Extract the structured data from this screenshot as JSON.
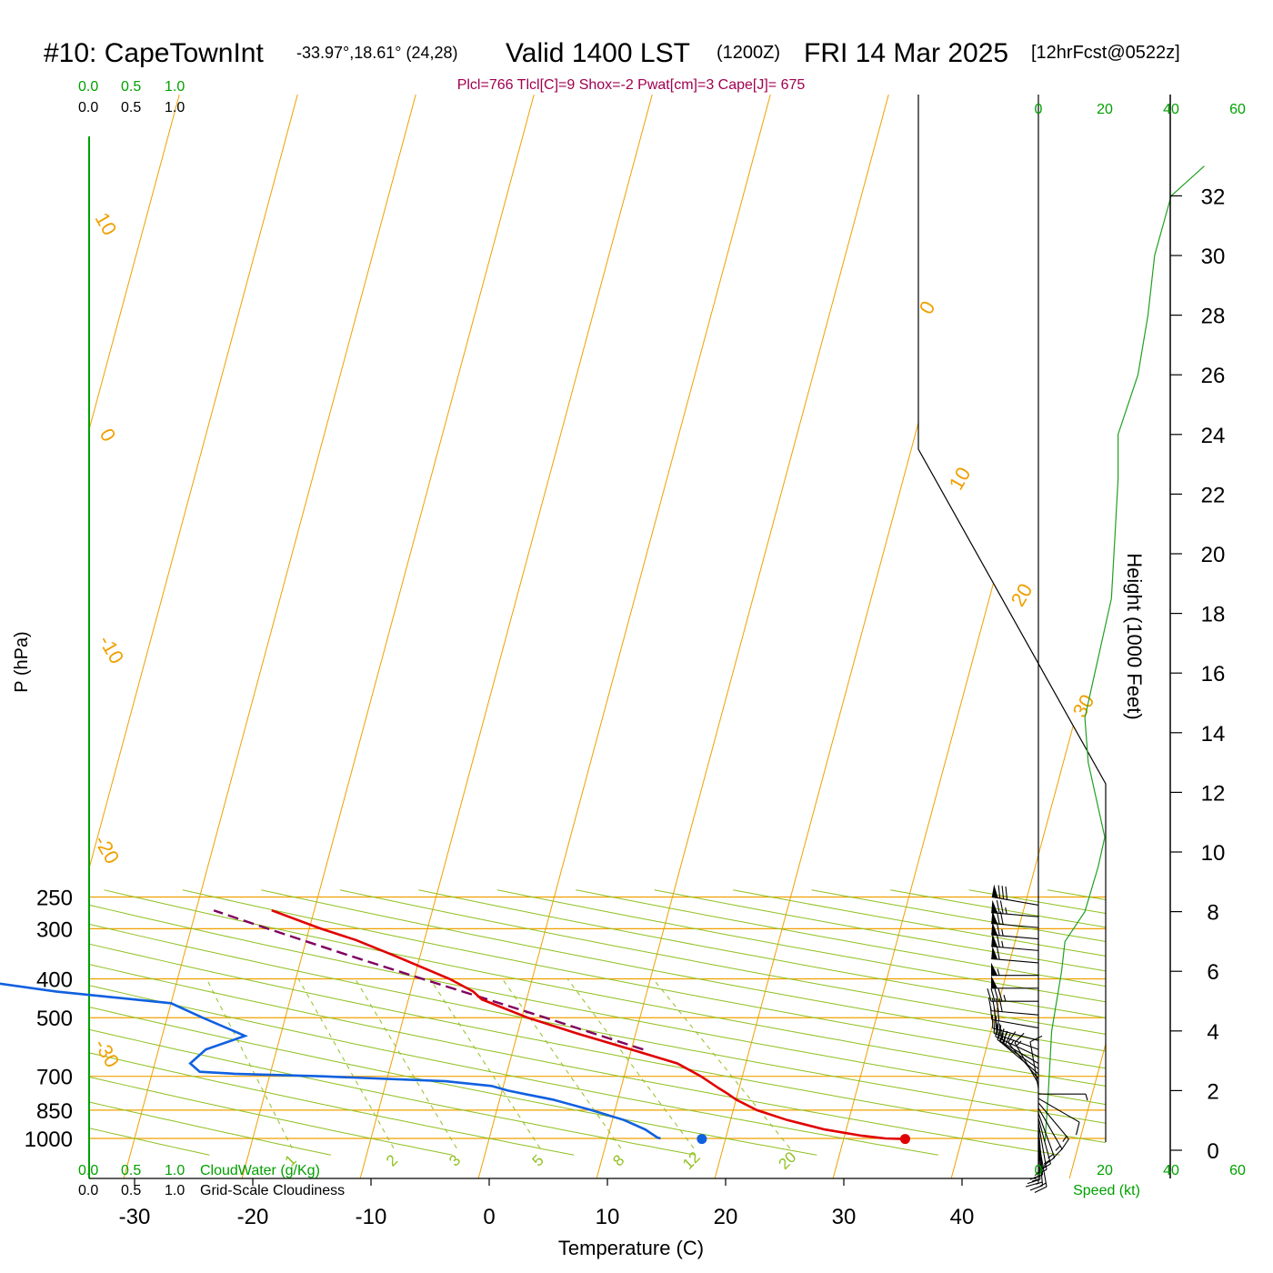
{
  "header": {
    "station": "#10: CapeTownInt",
    "coords": "-33.97°,18.61° (24,28)",
    "valid": "Valid 1400 LST",
    "zulu": "(1200Z)",
    "date": "FRI 14 Mar 2025",
    "forecast": "[12hrFcst@0522z]"
  },
  "indices": "Plcl=766 Tlcl[C]=9 Shox=-2 Pwat[cm]=3 Cape[J]= 675",
  "cloud_scale": {
    "ticks": [
      "0.0",
      "0.5",
      "1.0"
    ],
    "cloudwater_label": "CloudWater (g/Kg)",
    "cloudiness_label": "Grid-Scale Cloudiness"
  },
  "speed_scale": {
    "ticks": [
      "0",
      "20",
      "40",
      "60"
    ],
    "label": "Speed (kt)"
  },
  "colors": {
    "temperature": "#e00000",
    "dewpoint": "#1060e0",
    "parcel": "#800060",
    "isotherm": "#f0a000",
    "dry_adiabat": "#90c020",
    "mixing_ratio": "#90c020",
    "speed_profile": "#20a020",
    "label_green": "#00a000",
    "indices": "#a00050"
  },
  "chart_data": {
    "type": "skew-t",
    "xlabel": "Temperature (C)",
    "ylabel": "P (hPa)",
    "y2label": "Height (1000 Feet)",
    "x_ticks": [
      -30,
      -20,
      -10,
      0,
      10,
      20,
      30,
      40
    ],
    "p_ticks": [
      250,
      300,
      400,
      500,
      700,
      850,
      1000
    ],
    "height_ticks": [
      0,
      2,
      4,
      6,
      8,
      10,
      12,
      14,
      16,
      18,
      20,
      22,
      24,
      26,
      28,
      30,
      32
    ],
    "isotherm_labels": [
      {
        "text": "10",
        "t": 10
      },
      {
        "text": "0",
        "t": 0
      },
      {
        "text": "-10",
        "t": -10
      },
      {
        "text": "-20",
        "t": -20
      },
      {
        "text": "-30",
        "t": -30
      },
      {
        "text": "0",
        "t": 0
      },
      {
        "text": "10",
        "t": 10
      },
      {
        "text": "20",
        "t": 20
      },
      {
        "text": "30",
        "t": 30
      }
    ],
    "mixing_ratio_labels": [
      "1",
      "2",
      "3",
      "5",
      "8",
      "12",
      "20"
    ],
    "mixing_ratios": [
      1,
      2,
      3,
      5,
      8,
      12,
      20
    ],
    "temperature_profile": [
      {
        "p": 1003,
        "t": 35.0
      },
      {
        "p": 1000,
        "t": 33.5
      },
      {
        "p": 985,
        "t": 31.5
      },
      {
        "p": 950,
        "t": 28.2
      },
      {
        "p": 900,
        "t": 24.8
      },
      {
        "p": 850,
        "t": 22.0
      },
      {
        "p": 800,
        "t": 20.0
      },
      {
        "p": 775,
        "t": 19.2
      },
      {
        "p": 750,
        "t": 18.3
      },
      {
        "p": 700,
        "t": 16.5
      },
      {
        "p": 650,
        "t": 14.2
      },
      {
        "p": 600,
        "t": 10.0
      },
      {
        "p": 550,
        "t": 5.3
      },
      {
        "p": 500,
        "t": 0.5
      },
      {
        "p": 450,
        "t": -3.8
      },
      {
        "p": 430,
        "t": -4.7
      },
      {
        "p": 400,
        "t": -7.0
      },
      {
        "p": 350,
        "t": -12.2
      },
      {
        "p": 320,
        "t": -15.8
      },
      {
        "p": 300,
        "t": -19.0
      },
      {
        "p": 270,
        "t": -23.6
      }
    ],
    "dewpoint_profile": [
      {
        "p": 1000,
        "t": 14.5
      },
      {
        "p": 995,
        "t": 14.2
      },
      {
        "p": 950,
        "t": 13.0
      },
      {
        "p": 900,
        "t": 11.0
      },
      {
        "p": 850,
        "t": 8.0
      },
      {
        "p": 800,
        "t": 4.5
      },
      {
        "p": 775,
        "t": 2.0
      },
      {
        "p": 760,
        "t": 0.5
      },
      {
        "p": 740,
        "t": -1.0
      },
      {
        "p": 720,
        "t": -5.0
      },
      {
        "p": 700,
        "t": -15.5
      },
      {
        "p": 690,
        "t": -23.0
      },
      {
        "p": 682,
        "t": -26.0
      },
      {
        "p": 650,
        "t": -27.0
      },
      {
        "p": 600,
        "t": -26.0
      },
      {
        "p": 555,
        "t": -23.0
      },
      {
        "p": 500,
        "t": -27.0
      },
      {
        "p": 460,
        "t": -30.0
      },
      {
        "p": 430,
        "t": -40.0
      },
      {
        "p": 400,
        "t": -48.0
      },
      {
        "p": 350,
        "t": -47.0
      },
      {
        "p": 330,
        "t": -48.5
      },
      {
        "p": 300,
        "t": -48.0
      },
      {
        "p": 280,
        "t": -50.5
      },
      {
        "p": 262,
        "t": -53.0
      }
    ],
    "parcel_profile": [
      {
        "p": 600,
        "t": 11.0
      },
      {
        "p": 550,
        "t": 6.7
      },
      {
        "p": 500,
        "t": 2.0
      },
      {
        "p": 450,
        "t": -3.3
      },
      {
        "p": 400,
        "t": -9.3
      },
      {
        "p": 350,
        "t": -16.0
      },
      {
        "p": 300,
        "t": -23.5
      },
      {
        "p": 270,
        "t": -28.5
      }
    ],
    "surface_temperature": 35.2,
    "surface_dewpoint": 18.0,
    "wind_speed_profile": [
      {
        "h": 0.3,
        "kt": 2
      },
      {
        "h": 2.0,
        "kt": 3
      },
      {
        "h": 4.0,
        "kt": 4
      },
      {
        "h": 6.0,
        "kt": 7
      },
      {
        "h": 7.0,
        "kt": 8
      },
      {
        "h": 8.0,
        "kt": 14
      },
      {
        "h": 9.5,
        "kt": 18
      },
      {
        "h": 10.5,
        "kt": 20
      },
      {
        "h": 11.5,
        "kt": 18
      },
      {
        "h": 13.0,
        "kt": 15
      },
      {
        "h": 14.5,
        "kt": 14
      },
      {
        "h": 16.5,
        "kt": 18
      },
      {
        "h": 18.5,
        "kt": 22
      },
      {
        "h": 20.5,
        "kt": 23
      },
      {
        "h": 22.5,
        "kt": 24
      },
      {
        "h": 24.0,
        "kt": 24
      },
      {
        "h": 26.0,
        "kt": 30
      },
      {
        "h": 28.0,
        "kt": 33
      },
      {
        "h": 30.0,
        "kt": 35
      },
      {
        "h": 32.0,
        "kt": 40
      },
      {
        "h": 33.0,
        "kt": 50
      }
    ],
    "wind_barbs_upper": [
      {
        "p": 262,
        "dir": 280,
        "kt": 80
      },
      {
        "p": 280,
        "dir": 275,
        "kt": 75
      },
      {
        "p": 298,
        "dir": 275,
        "kt": 70
      },
      {
        "p": 318,
        "dir": 275,
        "kt": 65
      },
      {
        "p": 340,
        "dir": 275,
        "kt": 65
      },
      {
        "p": 365,
        "dir": 275,
        "kt": 60
      },
      {
        "p": 392,
        "dir": 270,
        "kt": 55
      },
      {
        "p": 422,
        "dir": 270,
        "kt": 50
      },
      {
        "p": 455,
        "dir": 270,
        "kt": 45
      },
      {
        "p": 492,
        "dir": 275,
        "kt": 40
      },
      {
        "p": 530,
        "dir": 280,
        "kt": 30
      },
      {
        "p": 570,
        "dir": 285,
        "kt": 25
      },
      {
        "p": 600,
        "dir": 290,
        "kt": 25
      },
      {
        "p": 625,
        "dir": 295,
        "kt": 25
      },
      {
        "p": 650,
        "dir": 300,
        "kt": 25
      },
      {
        "p": 670,
        "dir": 305,
        "kt": 20
      },
      {
        "p": 690,
        "dir": 310,
        "kt": 20
      },
      {
        "p": 710,
        "dir": 320,
        "kt": 15
      },
      {
        "p": 730,
        "dir": 330,
        "kt": 15
      },
      {
        "p": 750,
        "dir": 350,
        "kt": 10
      }
    ],
    "wind_barbs_lower": [
      {
        "p": 775,
        "dir": 90,
        "kt": 5
      },
      {
        "p": 795,
        "dir": 120,
        "kt": 10
      },
      {
        "p": 815,
        "dir": 140,
        "kt": 15
      },
      {
        "p": 840,
        "dir": 150,
        "kt": 15
      },
      {
        "p": 865,
        "dir": 160,
        "kt": 15
      },
      {
        "p": 890,
        "dir": 165,
        "kt": 15
      },
      {
        "p": 915,
        "dir": 170,
        "kt": 15
      },
      {
        "p": 940,
        "dir": 175,
        "kt": 15
      },
      {
        "p": 965,
        "dir": 178,
        "kt": 15
      },
      {
        "p": 985,
        "dir": 180,
        "kt": 15
      },
      {
        "p": 1000,
        "dir": 175,
        "kt": 15
      },
      {
        "p": 1010,
        "dir": 170,
        "kt": 15
      }
    ]
  }
}
